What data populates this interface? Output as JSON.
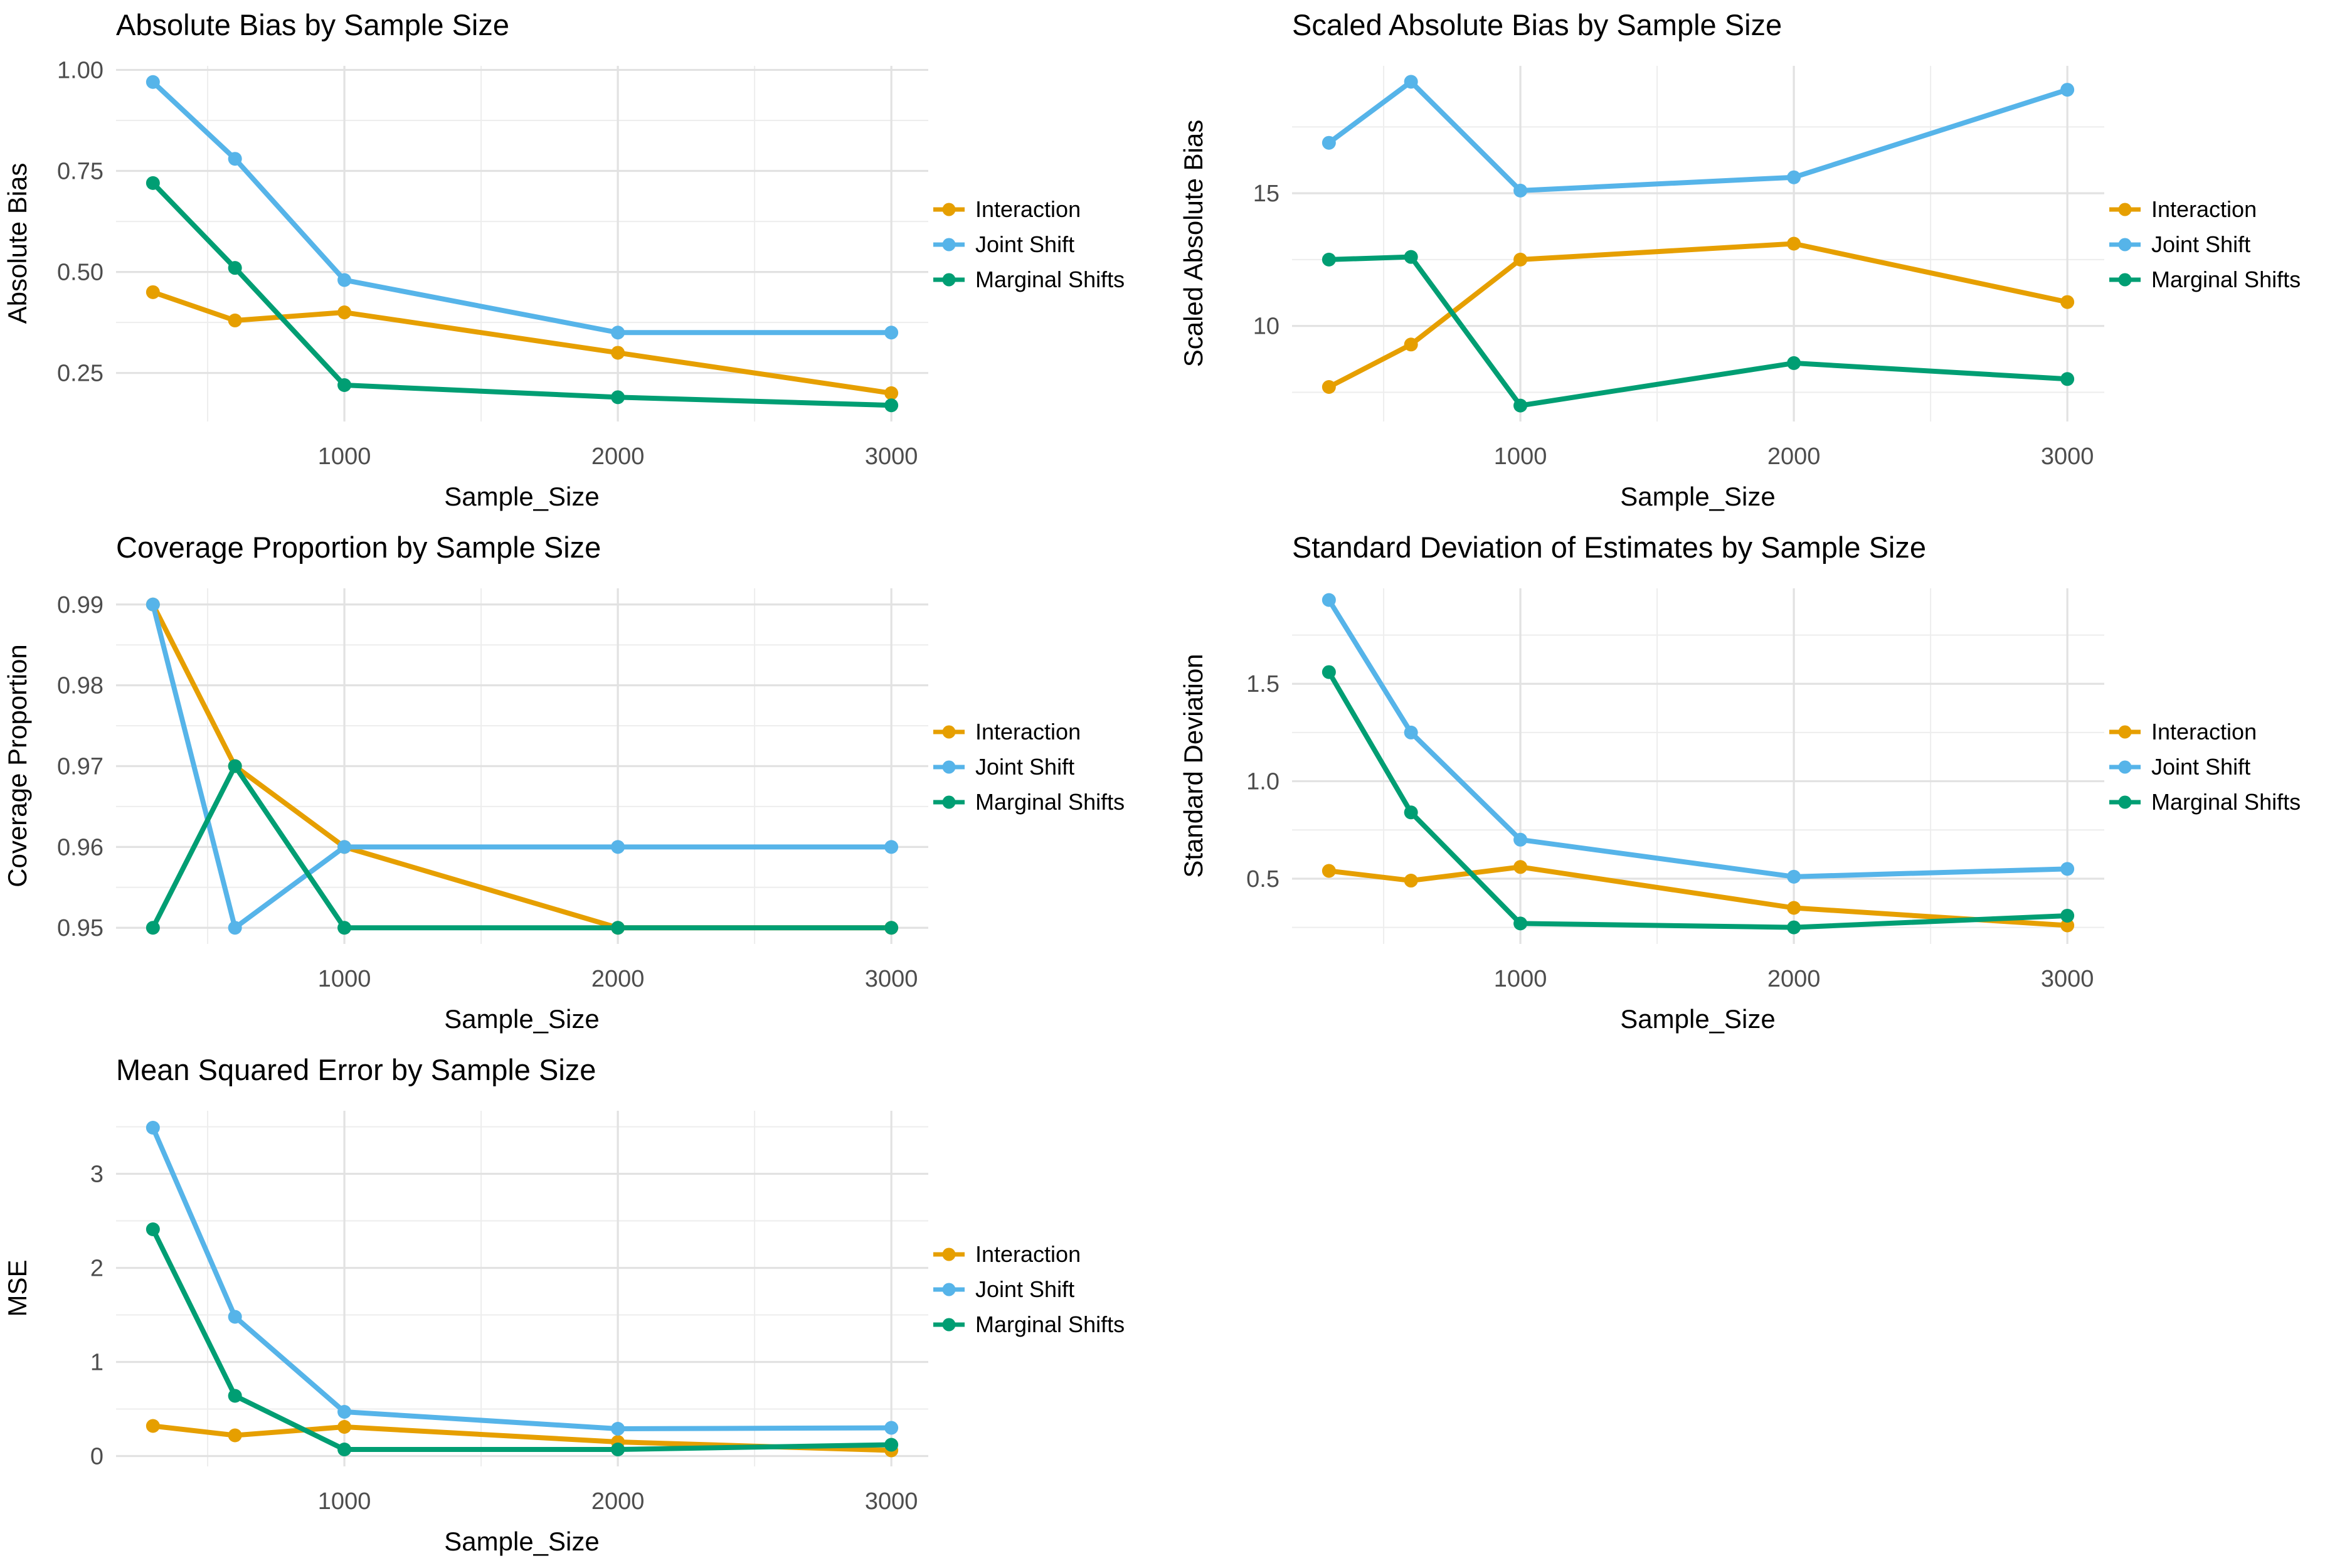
{
  "figure": {
    "background": "#ffffff"
  },
  "legend": {
    "items": [
      {
        "label": "Interaction",
        "color": "#E69F00"
      },
      {
        "label": "Joint Shift",
        "color": "#56B4E9"
      },
      {
        "label": "Marginal Shifts",
        "color": "#009E73"
      }
    ]
  },
  "chart_data": [
    {
      "type": "line",
      "title": "Absolute Bias by Sample Size",
      "xlabel": "Sample_Size",
      "ylabel": "Absolute Bias",
      "x": [
        300,
        600,
        1000,
        2000,
        3000
      ],
      "x_ticks": [
        1000,
        2000,
        3000
      ],
      "x_tick_labels": [
        "1000",
        "2000",
        "3000"
      ],
      "x_minor": [
        500,
        1500,
        2500
      ],
      "xlim": [
        165,
        3135
      ],
      "ylim": [
        0.13,
        1.01
      ],
      "y_ticks": [
        0.25,
        0.5,
        0.75,
        1.0
      ],
      "y_tick_labels": [
        "0.25",
        "0.50",
        "0.75",
        "1.00"
      ],
      "y_minor": [
        0.375,
        0.625,
        0.875
      ],
      "grid": true,
      "legend_position": "right",
      "series": [
        {
          "name": "Interaction",
          "color": "#E69F00",
          "values": [
            0.45,
            0.38,
            0.4,
            0.3,
            0.2
          ]
        },
        {
          "name": "Joint Shift",
          "color": "#56B4E9",
          "values": [
            0.97,
            0.78,
            0.48,
            0.35,
            0.35
          ]
        },
        {
          "name": "Marginal Shifts",
          "color": "#009E73",
          "values": [
            0.72,
            0.51,
            0.22,
            0.19,
            0.17
          ]
        }
      ]
    },
    {
      "type": "line",
      "title": "Scaled Absolute Bias by Sample Size",
      "xlabel": "Sample_Size",
      "ylabel": "Scaled Absolute Bias",
      "x": [
        300,
        600,
        1000,
        2000,
        3000
      ],
      "x_ticks": [
        1000,
        2000,
        3000
      ],
      "x_tick_labels": [
        "1000",
        "2000",
        "3000"
      ],
      "x_minor": [
        500,
        1500,
        2500
      ],
      "xlim": [
        165,
        3135
      ],
      "ylim": [
        6.4,
        19.8
      ],
      "y_ticks": [
        10,
        15
      ],
      "y_tick_labels": [
        "10",
        "15"
      ],
      "y_minor": [
        7.5,
        12.5,
        17.5
      ],
      "grid": true,
      "legend_position": "right",
      "series": [
        {
          "name": "Interaction",
          "color": "#E69F00",
          "values": [
            7.7,
            9.3,
            12.5,
            13.1,
            10.9
          ]
        },
        {
          "name": "Joint Shift",
          "color": "#56B4E9",
          "values": [
            16.9,
            19.2,
            15.1,
            15.6,
            18.9
          ]
        },
        {
          "name": "Marginal Shifts",
          "color": "#009E73",
          "values": [
            12.5,
            12.6,
            7.0,
            8.6,
            8.0
          ]
        }
      ]
    },
    {
      "type": "line",
      "title": "Coverage Proportion by Sample Size",
      "xlabel": "Sample_Size",
      "ylabel": "Coverage Proportion",
      "x": [
        300,
        600,
        1000,
        2000,
        3000
      ],
      "x_ticks": [
        1000,
        2000,
        3000
      ],
      "x_tick_labels": [
        "1000",
        "2000",
        "3000"
      ],
      "x_minor": [
        500,
        1500,
        2500
      ],
      "xlim": [
        165,
        3135
      ],
      "ylim": [
        0.948,
        0.992
      ],
      "y_ticks": [
        0.95,
        0.96,
        0.97,
        0.98,
        0.99
      ],
      "y_tick_labels": [
        "0.95",
        "0.96",
        "0.97",
        "0.98",
        "0.99"
      ],
      "y_minor": [
        0.955,
        0.965,
        0.975,
        0.985
      ],
      "grid": true,
      "legend_position": "right",
      "series": [
        {
          "name": "Interaction",
          "color": "#E69F00",
          "values": [
            0.99,
            0.97,
            0.96,
            0.95,
            0.95
          ]
        },
        {
          "name": "Joint Shift",
          "color": "#56B4E9",
          "values": [
            0.99,
            0.95,
            0.96,
            0.96,
            0.96
          ]
        },
        {
          "name": "Marginal Shifts",
          "color": "#009E73",
          "values": [
            0.95,
            0.97,
            0.95,
            0.95,
            0.95
          ]
        }
      ]
    },
    {
      "type": "line",
      "title": "Standard Deviation of Estimates by Sample Size",
      "xlabel": "Sample_Size",
      "ylabel": "Standard Deviation",
      "x": [
        300,
        600,
        1000,
        2000,
        3000
      ],
      "x_ticks": [
        1000,
        2000,
        3000
      ],
      "x_tick_labels": [
        "1000",
        "2000",
        "3000"
      ],
      "x_minor": [
        500,
        1500,
        2500
      ],
      "xlim": [
        165,
        3135
      ],
      "ylim": [
        0.165,
        1.99
      ],
      "y_ticks": [
        0.5,
        1.0,
        1.5
      ],
      "y_tick_labels": [
        "0.5",
        "1.0",
        "1.5"
      ],
      "y_minor": [
        0.25,
        0.75,
        1.25,
        1.75
      ],
      "grid": true,
      "legend_position": "right",
      "series": [
        {
          "name": "Interaction",
          "color": "#E69F00",
          "values": [
            0.54,
            0.49,
            0.56,
            0.35,
            0.26
          ]
        },
        {
          "name": "Joint Shift",
          "color": "#56B4E9",
          "values": [
            1.93,
            1.25,
            0.7,
            0.51,
            0.55
          ]
        },
        {
          "name": "Marginal Shifts",
          "color": "#009E73",
          "values": [
            1.56,
            0.84,
            0.27,
            0.25,
            0.31
          ]
        }
      ]
    },
    {
      "type": "line",
      "title": "Mean Squared Error by Sample Size",
      "xlabel": "Sample_Size",
      "ylabel": "MSE",
      "x": [
        300,
        600,
        1000,
        2000,
        3000
      ],
      "x_ticks": [
        1000,
        2000,
        3000
      ],
      "x_tick_labels": [
        "1000",
        "2000",
        "3000"
      ],
      "x_minor": [
        500,
        1500,
        2500
      ],
      "xlim": [
        165,
        3135
      ],
      "ylim": [
        -0.11,
        3.67
      ],
      "y_ticks": [
        0,
        1,
        2,
        3
      ],
      "y_tick_labels": [
        "0",
        "1",
        "2",
        "3"
      ],
      "y_minor": [
        0.5,
        1.5,
        2.5,
        3.5
      ],
      "grid": true,
      "legend_position": "right",
      "series": [
        {
          "name": "Interaction",
          "color": "#E69F00",
          "values": [
            0.32,
            0.22,
            0.31,
            0.15,
            0.06
          ]
        },
        {
          "name": "Joint Shift",
          "color": "#56B4E9",
          "values": [
            3.49,
            1.48,
            0.47,
            0.29,
            0.3
          ]
        },
        {
          "name": "Marginal Shifts",
          "color": "#009E73",
          "values": [
            2.41,
            0.64,
            0.07,
            0.07,
            0.12
          ]
        }
      ]
    }
  ]
}
